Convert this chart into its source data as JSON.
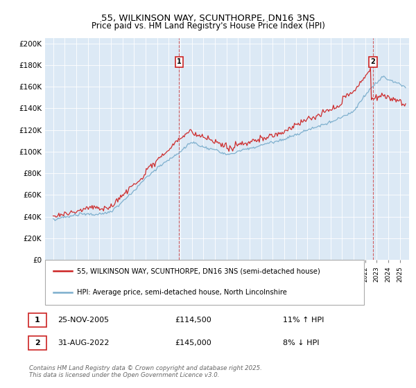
{
  "title": "55, WILKINSON WAY, SCUNTHORPE, DN16 3NS",
  "subtitle": "Price paid vs. HM Land Registry's House Price Index (HPI)",
  "ytick_labels": [
    "£0",
    "£20K",
    "£40K",
    "£60K",
    "£80K",
    "£100K",
    "£120K",
    "£140K",
    "£160K",
    "£180K",
    "£200K"
  ],
  "yticks": [
    0,
    20000,
    40000,
    60000,
    80000,
    100000,
    120000,
    140000,
    160000,
    180000,
    200000
  ],
  "legend_line1": "55, WILKINSON WAY, SCUNTHORPE, DN16 3NS (semi-detached house)",
  "legend_line2": "HPI: Average price, semi-detached house, North Lincolnshire",
  "annotation1_label": "1",
  "annotation1_date": "25-NOV-2005",
  "annotation1_price": "£114,500",
  "annotation1_change": "11% ↑ HPI",
  "annotation2_label": "2",
  "annotation2_date": "31-AUG-2022",
  "annotation2_price": "£145,000",
  "annotation2_change": "8% ↓ HPI",
  "footer": "Contains HM Land Registry data © Crown copyright and database right 2025.\nThis data is licensed under the Open Government Licence v3.0.",
  "red_color": "#cc2222",
  "blue_color": "#7aadcc",
  "bg_color": "#dce9f5",
  "sale1_x": 2005.9,
  "sale2_x": 2022.67
}
